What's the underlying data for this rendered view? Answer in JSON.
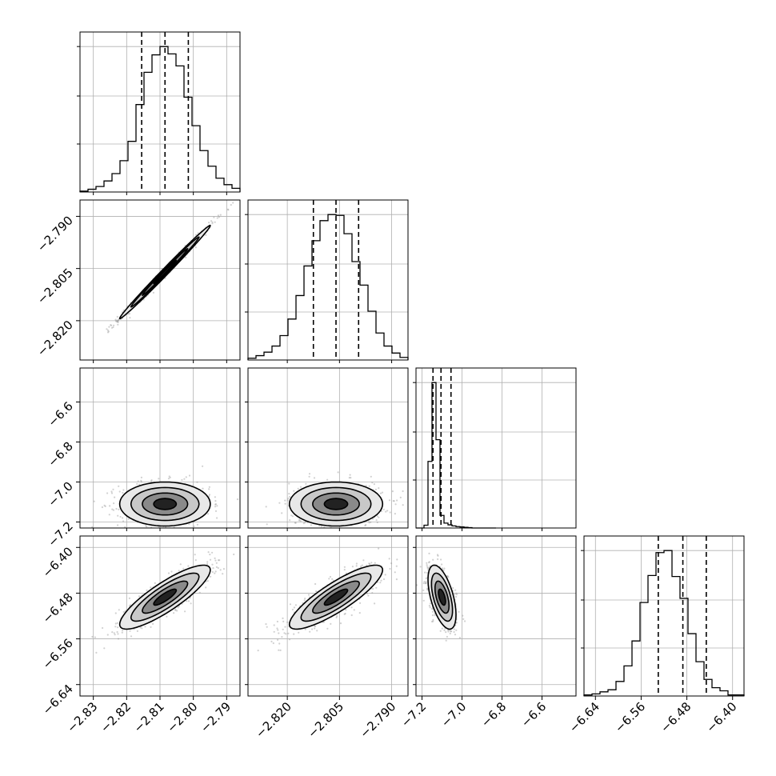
{
  "chart_data": {
    "type": "corner",
    "title": "",
    "parameters": [
      {
        "index": 0,
        "range": [
          -2.834,
          -2.786
        ],
        "ticks": [
          -2.83,
          -2.82,
          -2.81,
          -2.8,
          -2.79
        ],
        "tick_labels": [
          "−2.83",
          "−2.82",
          "−2.81",
          "−2.80",
          "−2.79"
        ],
        "quantiles": [
          -2.8155,
          -2.8085,
          -2.8015
        ],
        "histogram": {
          "edges_start": -2.834,
          "bin_width": 0.0024,
          "counts": [
            1,
            3,
            6,
            12,
            20,
            34,
            55,
            95,
            130,
            149,
            158,
            150,
            137,
            103,
            72,
            45,
            28,
            15,
            8,
            4
          ]
        }
      },
      {
        "index": 1,
        "range": [
          -2.8313,
          -2.7853
        ],
        "ticks": [
          -2.82,
          -2.805,
          -2.79
        ],
        "tick_labels": [
          "−2.820",
          "−2.805",
          "−2.790"
        ],
        "quantiles": [
          -2.8125,
          -2.806,
          -2.7995
        ],
        "histogram": {
          "edges_start": -2.8313,
          "bin_width": 0.0023,
          "counts": [
            2,
            5,
            9,
            16,
            28,
            47,
            74,
            108,
            137,
            160,
            167,
            166,
            145,
            113,
            86,
            56,
            31,
            16,
            8,
            3
          ]
        }
      },
      {
        "index": 2,
        "range": [
          -7.23,
          -6.43
        ],
        "ticks": [
          -7.2,
          -7.0,
          -6.8,
          -6.6
        ],
        "tick_labels": [
          "−7.2",
          "−7.0",
          "−6.8",
          "−6.6"
        ],
        "quantiles": [
          -7.145,
          -7.105,
          -7.055
        ],
        "histogram": {
          "edges_start": -7.23,
          "bin_width": 0.02,
          "counts": [
            0,
            0,
            8,
            190,
            415,
            252,
            36,
            14,
            9,
            6,
            4,
            3,
            2,
            1,
            0,
            0,
            0,
            0,
            0,
            0
          ]
        }
      },
      {
        "index": 3,
        "range": [
          -6.66,
          -6.38
        ],
        "ticks": [
          -6.64,
          -6.56,
          -6.48,
          -6.4
        ],
        "tick_labels": [
          "−6.64",
          "−6.56",
          "−6.48",
          "−6.40"
        ],
        "quantiles": [
          -6.53,
          -6.487,
          -6.446
        ],
        "histogram": {
          "edges_start": -6.66,
          "bin_width": 0.014,
          "counts": [
            1,
            2,
            4,
            6,
            14,
            29,
            53,
            90,
            116,
            138,
            140,
            115,
            94,
            60,
            33,
            16,
            8,
            5,
            1,
            1
          ]
        }
      }
    ],
    "pair_plots": [
      {
        "row": 1,
        "col": 0,
        "mean": [
          -2.8085,
          -2.806
        ],
        "sd": [
          0.0068,
          0.0067
        ],
        "correlation": 0.995,
        "points_shown": 700
      },
      {
        "row": 2,
        "col": 0,
        "mean": [
          -2.8085,
          -7.11
        ],
        "sd": [
          0.0068,
          0.055
        ],
        "correlation": 0.0,
        "points_shown": 700
      },
      {
        "row": 2,
        "col": 1,
        "mean": [
          -2.806,
          -7.11
        ],
        "sd": [
          0.0067,
          0.055
        ],
        "correlation": 0.0,
        "points_shown": 700
      },
      {
        "row": 3,
        "col": 0,
        "mean": [
          -2.8085,
          -6.487
        ],
        "sd": [
          0.0068,
          0.028
        ],
        "correlation": 0.85,
        "points_shown": 700
      },
      {
        "row": 3,
        "col": 1,
        "mean": [
          -2.806,
          -6.487
        ],
        "sd": [
          0.0067,
          0.028
        ],
        "correlation": 0.85,
        "points_shown": 700
      },
      {
        "row": 3,
        "col": 2,
        "mean": [
          -7.1,
          -6.487
        ],
        "sd": [
          0.035,
          0.028
        ],
        "correlation": -0.55,
        "points_shown": 700
      }
    ],
    "contour_levels_sigma": [
      0.5,
      1.0,
      1.5,
      2.0
    ],
    "grid": true,
    "colors": {
      "points": "#9a9a9a",
      "lines": "#000000",
      "fill_light": "#e8e8e8",
      "fill_dark": "#000000"
    }
  }
}
